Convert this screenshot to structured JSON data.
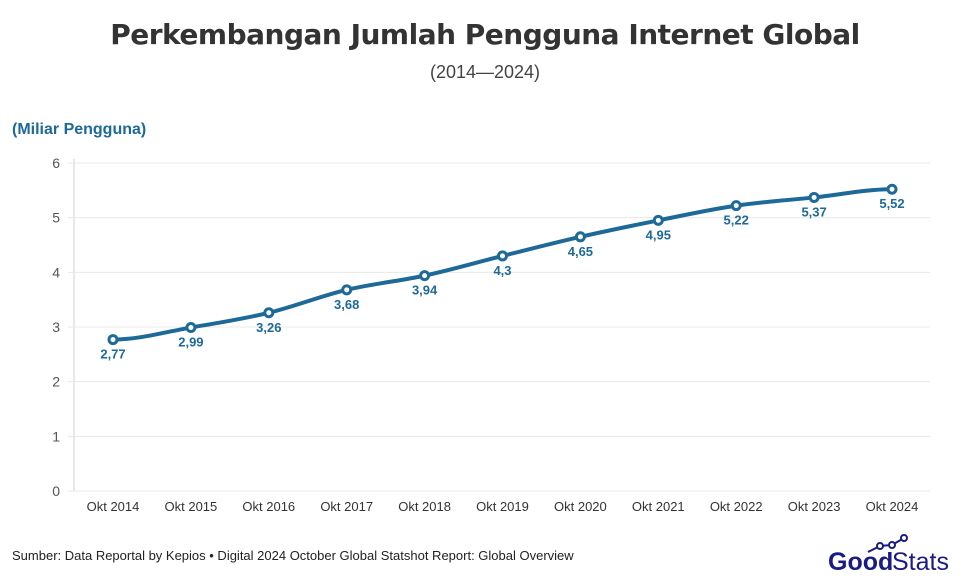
{
  "chart_data": {
    "type": "line",
    "title": "Perkembangan Jumlah Pengguna Internet Global",
    "subtitle": "(2014—2024)",
    "ylabel": "(Miliar Pengguna)",
    "xlabel": "",
    "categories": [
      "Okt 2014",
      "Okt 2015",
      "Okt 2016",
      "Okt 2017",
      "Okt 2018",
      "Okt 2019",
      "Okt 2020",
      "Okt 2021",
      "Okt 2022",
      "Okt 2023",
      "Okt 2024"
    ],
    "values": [
      2.77,
      2.99,
      3.26,
      3.68,
      3.94,
      4.3,
      4.65,
      4.95,
      5.22,
      5.37,
      5.52
    ],
    "data_labels": [
      "2,77",
      "2,99",
      "3,26",
      "3,68",
      "3,94",
      "4,3",
      "4,65",
      "4,95",
      "5,22",
      "5,37",
      "5,52"
    ],
    "yticks": [
      "0",
      "1",
      "2",
      "3",
      "4",
      "5",
      "6"
    ],
    "ylim": [
      0,
      6
    ],
    "grid": true,
    "line_color": "#1d6a99"
  },
  "source": "Sumber: Data Reportal by Kepios • Digital 2024 October Global Statshot Report: Global Overview",
  "logo": {
    "text": "GoodStats",
    "color": "#1b1b85"
  }
}
